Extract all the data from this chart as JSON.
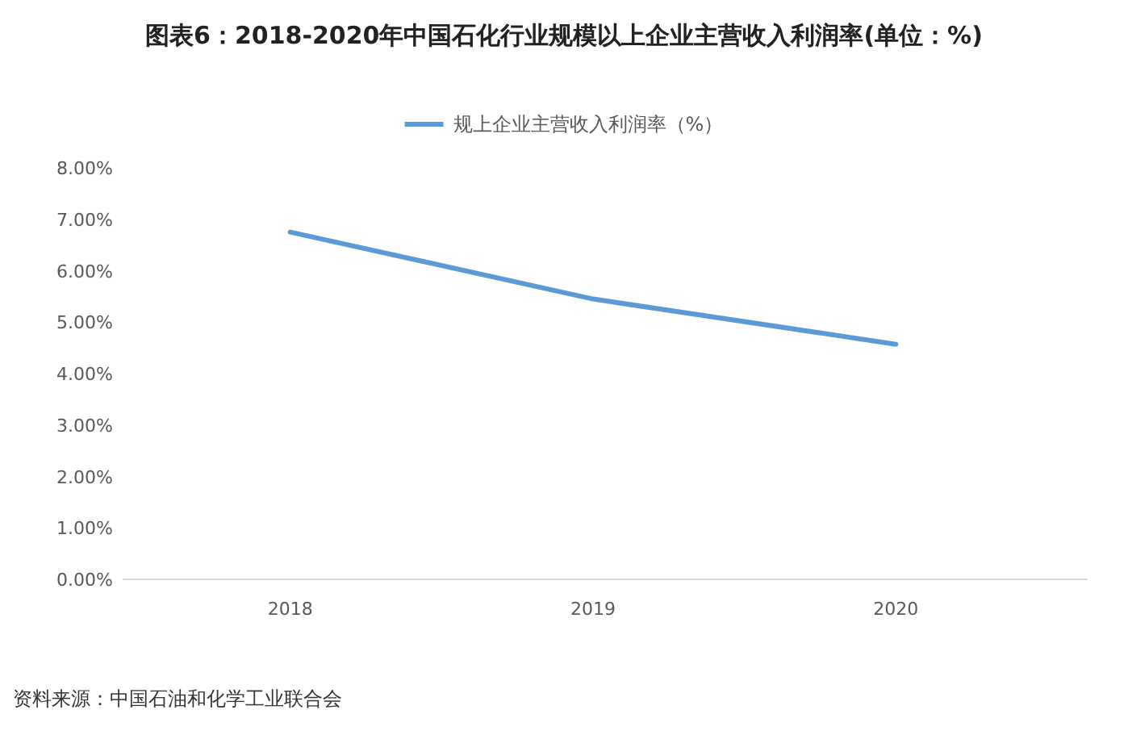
{
  "chart_data": {
    "type": "line",
    "title": "图表6：2018-2020年中国石化行业规模以上企业主营收入利润率(单位：%)",
    "categories": [
      "2018",
      "2019",
      "2020"
    ],
    "series": [
      {
        "name": "规上企业主营收入利润率（%）",
        "color": "#5b9bd5",
        "values": [
          6.75,
          5.45,
          4.57
        ]
      }
    ],
    "ylim": [
      0,
      8
    ],
    "yticks": [
      {
        "value": 0,
        "label": "0.00%"
      },
      {
        "value": 1,
        "label": "1.00%"
      },
      {
        "value": 2,
        "label": "2.00%"
      },
      {
        "value": 3,
        "label": "3.00%"
      },
      {
        "value": 4,
        "label": "4.00%"
      },
      {
        "value": 5,
        "label": "5.00%"
      },
      {
        "value": 6,
        "label": "6.00%"
      },
      {
        "value": 7,
        "label": "7.00%"
      },
      {
        "value": 8,
        "label": "8.00%"
      }
    ],
    "legend": "top",
    "annotations": [
      "资料来源：中国石油和化学工业联合会"
    ]
  }
}
